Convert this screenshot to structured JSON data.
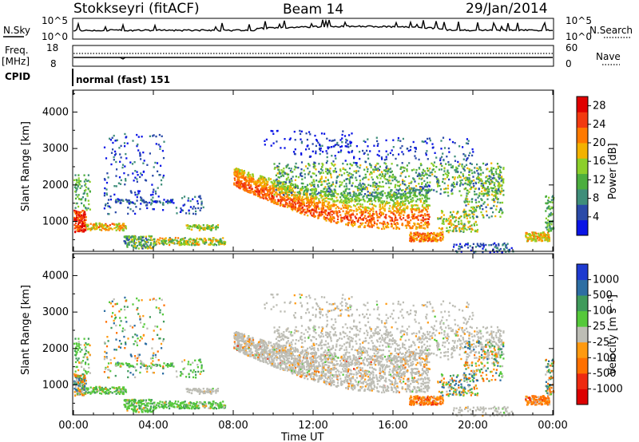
{
  "header": {
    "station": "Stokkseyri (fitACF)",
    "beam": "Beam 14",
    "date": "29/Jan/2014"
  },
  "sky_panel": {
    "left_label": "N.Sky",
    "right_label": "N.Search",
    "left_ticks": [
      "10^5",
      "10^0"
    ],
    "right_ticks": [
      "10^5",
      "10^0"
    ]
  },
  "freq_panel": {
    "label_line1": "Freq.",
    "label_line2": "[MHz]",
    "left_ticks": [
      "18",
      "8"
    ],
    "right_ticks": [
      "60",
      "0"
    ],
    "right_label": "Nave"
  },
  "cpid_panel": {
    "label": "CPID",
    "mode": "normal (fast) 151"
  },
  "chart_data": [
    {
      "type": "heatmap",
      "panel": "power",
      "ylabel": "Slant Range [km]",
      "ylim": [
        180,
        4600
      ],
      "xlim_hours": [
        0,
        24
      ],
      "y_ticks": [
        "1000",
        "2000",
        "3000",
        "4000"
      ],
      "y_tick_values": [
        1000,
        2000,
        3000,
        4000
      ],
      "colorbar": {
        "label": "Power [dB]",
        "ticks": [
          "4",
          "8",
          "12",
          "16",
          "20",
          "24",
          "28"
        ],
        "tick_values": [
          4,
          8,
          12,
          16,
          20,
          24,
          28
        ],
        "range": [
          0,
          30
        ],
        "colors": [
          "#0a14e6",
          "#2a4aa8",
          "#3f8e7a",
          "#4cae3e",
          "#8ccf2a",
          "#f3b200",
          "#ff7a00",
          "#f23a10",
          "#e00000"
        ]
      }
    },
    {
      "type": "heatmap",
      "panel": "velocity",
      "ylabel": "Slant Range [km]",
      "ylim": [
        180,
        4600
      ],
      "xlim_hours": [
        0,
        24
      ],
      "y_ticks": [
        "1000",
        "2000",
        "3000",
        "4000"
      ],
      "y_tick_values": [
        1000,
        2000,
        3000,
        4000
      ],
      "colorbar": {
        "label": "Velocity [m s⁻¹]",
        "ticks": [
          "1000",
          "500",
          "100",
          "25",
          "-25",
          "-100",
          "-500",
          "-1000"
        ],
        "colors": [
          "#1e3ad0",
          "#2d6ea3",
          "#3f9b5b",
          "#55c93a",
          "#bdbdb5",
          "#ff9a10",
          "#ff7000",
          "#ee2a10",
          "#dd0000"
        ]
      }
    }
  ],
  "time_axis": {
    "label": "Time UT",
    "ticks": [
      "00:00",
      "04:00",
      "08:00",
      "12:00",
      "16:00",
      "20:00",
      "00:00"
    ],
    "tick_hours": [
      0,
      4,
      8,
      12,
      16,
      20,
      24
    ]
  }
}
